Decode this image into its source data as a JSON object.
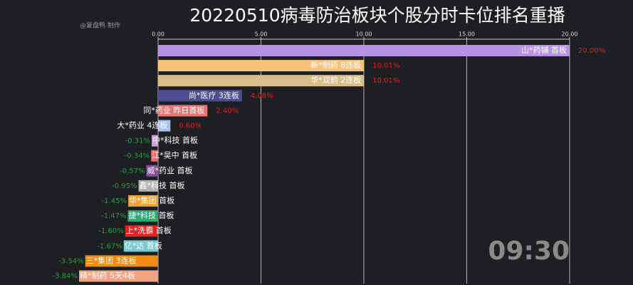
{
  "chart_data": {
    "type": "barh",
    "title": "20220510病毒防治板块个股分时卡位排名重播",
    "watermark": "@复盘鸭 制作",
    "timestamp": "09:30",
    "categories": [
      "山*药铺 首板",
      "新*制药 8连板",
      "华*双鹤 2连板",
      "尚*医疗 3连板",
      "同*药业 昨日首板",
      "大*药业 4连板",
      "中*科技 首板",
      "江*吴中 首板",
      "威*药业 首板",
      "鑫*科技 首板",
      "华*集团 首板",
      "捷*科技 首板",
      "上*洗霸 首板",
      "亿*达 首板",
      "三*集团 3连板",
      "精*制药 5天4板"
    ],
    "values": [
      20.0,
      10.01,
      10.01,
      4.08,
      2.4,
      0.6,
      -0.31,
      -0.34,
      -0.57,
      -0.95,
      -1.45,
      -1.47,
      -1.6,
      -1.67,
      -3.54,
      -3.84
    ],
    "value_labels": [
      "20.00%",
      "10.01%",
      "10.01%",
      "4.08%",
      "2.40%",
      "0.60%",
      "-0.31%",
      "-0.34%",
      "-0.57%",
      "-0.95%",
      "-1.45%",
      "-1.47%",
      "-1.60%",
      "-1.67%",
      "-3.54%",
      "-3.84%"
    ],
    "colors": [
      "#b793e3",
      "#f7c27c",
      "#d8bd88",
      "#4d4d92",
      "#e57676",
      "#a9c1ea",
      "#c9a3de",
      "#e66c6c",
      "#8c4d9d",
      "#b3b3b3",
      "#f0a232",
      "#2ca872",
      "#e02424",
      "#7bcad2",
      "#f08c12",
      "#f2a384"
    ],
    "positive_color": "#e02020",
    "negative_color": "#2aa040",
    "xlim": [
      0,
      20
    ],
    "xticks": [
      {
        "value": 0,
        "label": "0.00"
      },
      {
        "value": 5,
        "label": "5.00"
      },
      {
        "value": 10,
        "label": "10.00"
      },
      {
        "value": 15,
        "label": "15.00"
      },
      {
        "value": 20,
        "label": "20.00"
      }
    ],
    "grid": true
  }
}
